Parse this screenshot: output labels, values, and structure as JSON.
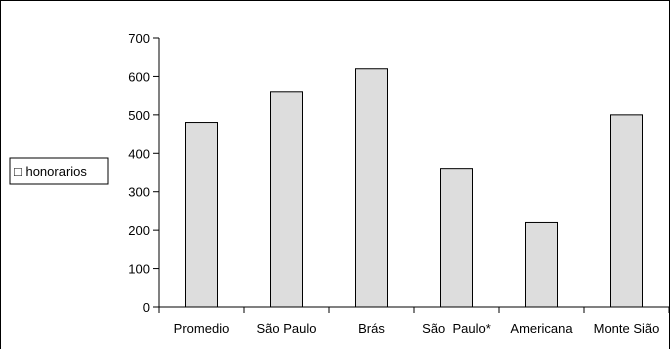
{
  "chart_data": {
    "type": "bar",
    "categories": [
      "Promedio",
      "São Paulo",
      "Brás",
      "São  Paulo*",
      "Americana",
      "Monte Sião"
    ],
    "series": [
      {
        "name": "honorarios",
        "values": [
          480,
          560,
          620,
          360,
          220,
          500
        ],
        "color": "#dddddd",
        "stroke": "#000000"
      }
    ],
    "ylim": [
      0,
      700
    ],
    "yticks": [
      0,
      100,
      200,
      300,
      400,
      500,
      600,
      700
    ],
    "ytick_labels": [
      "0",
      "100",
      "200",
      "300",
      "400",
      "500",
      "600",
      "700"
    ],
    "grid": false,
    "legend_position": "left",
    "legend_marker": "□"
  }
}
